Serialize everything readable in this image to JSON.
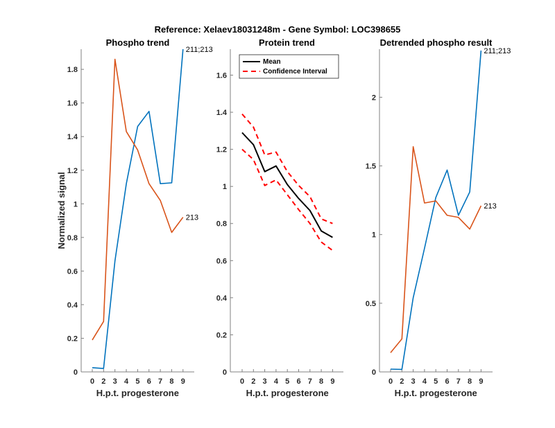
{
  "figure": {
    "title": "Reference:  Xelaev18031248m - Gene Symbol:  LOC398655"
  },
  "colors": {
    "series_blue": "#0072BD",
    "series_orange": "#D95319",
    "mean": "#000000",
    "ci": "#FF0000",
    "axis": "#808080"
  },
  "chart_data": [
    {
      "type": "line",
      "title": "Phospho trend",
      "xlabel": "H.p.t. progesterone",
      "ylabel": "Normalized signal",
      "categories": [
        "0",
        "2",
        "3",
        "4",
        "5",
        "6",
        "7",
        "8",
        "9"
      ],
      "ylim": [
        0,
        1.92
      ],
      "yticks": [
        "0",
        "0.2",
        "0.4",
        "0.6",
        "0.8",
        "1",
        "1.2",
        "1.4",
        "1.6",
        "1.8"
      ],
      "ytick_values": [
        0,
        0.2,
        0.4,
        0.6,
        0.8,
        1,
        1.2,
        1.4,
        1.6,
        1.8
      ],
      "series": [
        {
          "name": "211;213",
          "color": "#0072BD",
          "values": [
            0.025,
            0.02,
            0.66,
            1.12,
            1.46,
            1.55,
            1.12,
            1.125,
            1.92
          ]
        },
        {
          "name": "213",
          "color": "#D95319",
          "values": [
            0.19,
            0.3,
            1.86,
            1.43,
            1.32,
            1.12,
            1.02,
            0.83,
            0.92
          ]
        }
      ],
      "annotations": [
        "211;213",
        "213"
      ]
    },
    {
      "type": "line",
      "title": "Protein trend",
      "xlabel": "H.p.t. progesterone",
      "ylabel": "",
      "categories": [
        "0",
        "2",
        "3",
        "4",
        "5",
        "6",
        "7",
        "8",
        "9"
      ],
      "ylim": [
        0,
        1.74
      ],
      "yticks": [
        "0",
        "0.2",
        "0.4",
        "0.6",
        "0.8",
        "1",
        "1.2",
        "1.4",
        "1.6"
      ],
      "ytick_values": [
        0,
        0.2,
        0.4,
        0.6,
        0.8,
        1,
        1.2,
        1.4,
        1.6
      ],
      "legend": {
        "position": "top-left",
        "entries": [
          "Mean",
          "Confidence Interval"
        ]
      },
      "series": [
        {
          "name": "Mean",
          "style": "solid",
          "color": "#000000",
          "values": [
            1.29,
            1.225,
            1.08,
            1.11,
            1.01,
            0.935,
            0.87,
            0.76,
            0.725
          ]
        },
        {
          "name": "Confidence Interval (upper)",
          "style": "dashed",
          "color": "#FF0000",
          "values": [
            1.39,
            1.32,
            1.17,
            1.185,
            1.08,
            1.005,
            0.945,
            0.825,
            0.8
          ]
        },
        {
          "name": "Confidence Interval (lower)",
          "style": "dashed",
          "color": "#FF0000",
          "values": [
            1.2,
            1.145,
            1.005,
            1.035,
            0.955,
            0.875,
            0.8,
            0.7,
            0.655
          ]
        }
      ]
    },
    {
      "type": "line",
      "title": "Detrended phospho result",
      "xlabel": "H.p.t. progesterone",
      "ylabel": "",
      "categories": [
        "0",
        "2",
        "3",
        "4",
        "5",
        "6",
        "7",
        "8",
        "9"
      ],
      "ylim": [
        0,
        2.35
      ],
      "yticks": [
        "0",
        "0.5",
        "1",
        "1.5",
        "2"
      ],
      "ytick_values": [
        0,
        0.5,
        1,
        1.5,
        2
      ],
      "series": [
        {
          "name": "211;213",
          "color": "#0072BD",
          "values": [
            0.02,
            0.018,
            0.54,
            0.9,
            1.27,
            1.47,
            1.14,
            1.31,
            2.34
          ]
        },
        {
          "name": "213",
          "color": "#D95319",
          "values": [
            0.14,
            0.24,
            1.64,
            1.23,
            1.245,
            1.14,
            1.125,
            1.04,
            1.21
          ]
        }
      ],
      "annotations": [
        "211;213",
        "213"
      ]
    }
  ]
}
